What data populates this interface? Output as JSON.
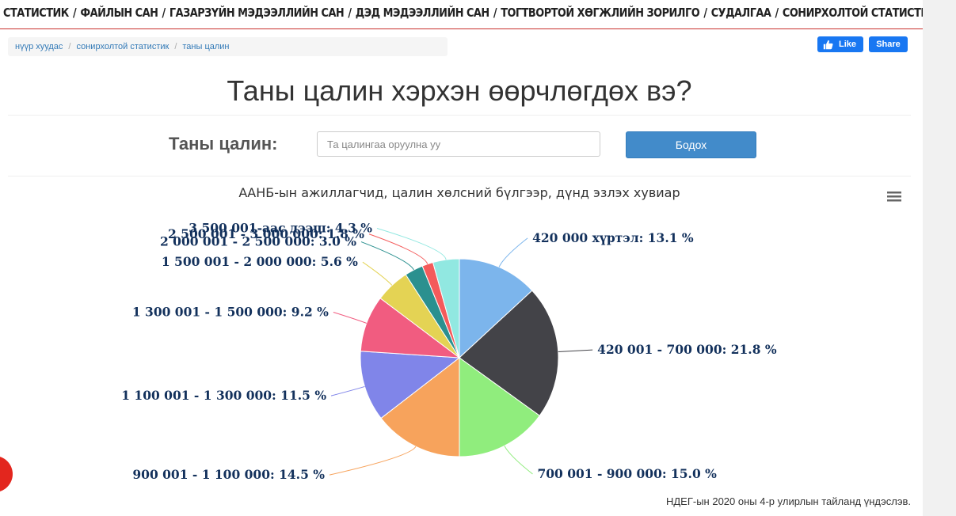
{
  "nav": {
    "items": [
      "СТАТИСТИК",
      "ФАЙЛЫН САН",
      "ГАЗАРЗҮЙН МЭДЭЭЛЛИЙН САН",
      "ДЭД МЭДЭЭЛЛИЙН САН",
      "ТОГТВОРТОЙ ХӨГЖЛИЙН ЗОРИЛГО",
      "СУДАЛГАА",
      "СОНИРХОЛТОЙ СТАТИСТИК"
    ],
    "separator": "/"
  },
  "breadcrumb": {
    "items": [
      "нүүр хуудас",
      "сонирхолтой статистик",
      "таны цалин"
    ],
    "separator": "/"
  },
  "social": {
    "like_label": "Like",
    "share_label": "Share"
  },
  "page_title": "Таны цалин хэрхэн өөрчлөгдөх вэ?",
  "form": {
    "label": "Таны цалин:",
    "placeholder": "Та цалингаа оруулна уу",
    "button_label": "Бодох"
  },
  "chart_data": {
    "type": "pie",
    "title": "ААНБ-ын ажиллагчид, цалин хөлсний бүлгээр, дүнд эзлэх хувиар",
    "slices": [
      {
        "label": "420 000 хүртэл",
        "value": 13.1,
        "color": "#7cb5ec"
      },
      {
        "label": "420 001 - 700 000",
        "value": 21.8,
        "color": "#434348"
      },
      {
        "label": "700 001 - 900 000",
        "value": 15.0,
        "color": "#90ed7d"
      },
      {
        "label": "900 001 - 1 100 000",
        "value": 14.5,
        "color": "#f7a35c"
      },
      {
        "label": "1 100 001 - 1 300 000",
        "value": 11.5,
        "color": "#8085e9"
      },
      {
        "label": "1 300 001 - 1 500 000",
        "value": 9.2,
        "color": "#f15c80"
      },
      {
        "label": "1 500 001 - 2 000 000",
        "value": 5.6,
        "color": "#e4d354"
      },
      {
        "label": "2 000 001 - 2 500 000",
        "value": 3.0,
        "color": "#2b908f"
      },
      {
        "label": "2 500 001 - 3 000 000",
        "value": 1.8,
        "color": "#f45b5b"
      },
      {
        "label": "3 500 001-аас дээш",
        "value": 4.3,
        "color": "#91e8e1"
      }
    ],
    "value_suffix": " %"
  },
  "source_note": "НДЕГ-ын 2020 оны 4-р улирлын тайланд үндэслэв.",
  "icons": {
    "menu": "hamburger-menu-icon",
    "like": "thumbs-up-icon"
  }
}
